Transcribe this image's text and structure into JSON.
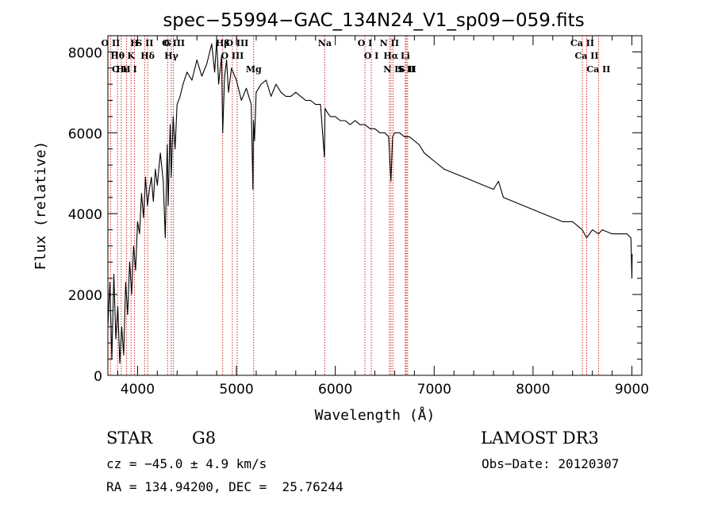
{
  "chart_data": {
    "type": "line",
    "title": "spec−55994−GAC_134N24_V1_sp09−059.fits",
    "xlabel": "Wavelength (Å)",
    "ylabel": "Flux (relative)",
    "xlim": [
      3700,
      9100
    ],
    "ylim": [
      0,
      8400
    ],
    "x_ticks": [
      4000,
      5000,
      6000,
      7000,
      8000,
      9000
    ],
    "x_tick_labels": [
      "4000",
      "5000",
      "6000",
      "7000",
      "8000",
      "9000"
    ],
    "y_ticks": [
      0,
      2000,
      4000,
      6000,
      8000
    ],
    "y_tick_labels": [
      "0",
      "2000",
      "4000",
      "6000",
      "8000"
    ],
    "series": [
      {
        "name": "spectrum",
        "x": [
          3700,
          3720,
          3740,
          3760,
          3780,
          3800,
          3820,
          3840,
          3860,
          3880,
          3900,
          3920,
          3940,
          3960,
          3980,
          4000,
          4020,
          4040,
          4060,
          4080,
          4100,
          4120,
          4140,
          4160,
          4180,
          4200,
          4230,
          4260,
          4280,
          4300,
          4310,
          4330,
          4340,
          4360,
          4380,
          4400,
          4430,
          4460,
          4500,
          4550,
          4600,
          4650,
          4700,
          4750,
          4780,
          4800,
          4820,
          4850,
          4861,
          4880,
          4900,
          4920,
          4950,
          5000,
          5050,
          5100,
          5150,
          5167,
          5172,
          5183,
          5200,
          5250,
          5300,
          5350,
          5400,
          5450,
          5500,
          5550,
          5600,
          5650,
          5700,
          5750,
          5800,
          5850,
          5890,
          5896,
          5920,
          5950,
          6000,
          6050,
          6100,
          6150,
          6200,
          6250,
          6300,
          6350,
          6400,
          6450,
          6500,
          6540,
          6563,
          6580,
          6600,
          6650,
          6700,
          6750,
          6800,
          6850,
          6900,
          6950,
          7000,
          7100,
          7200,
          7300,
          7400,
          7500,
          7600,
          7650,
          7700,
          7800,
          7900,
          8000,
          8100,
          8200,
          8300,
          8400,
          8498,
          8542,
          8600,
          8662,
          8700,
          8800,
          8900,
          8950,
          8990,
          9000,
          9002
        ],
        "y": [
          1200,
          2300,
          400,
          2500,
          900,
          1700,
          300,
          1200,
          500,
          2300,
          1500,
          2800,
          2000,
          3200,
          2600,
          3800,
          3500,
          4500,
          3900,
          4900,
          4200,
          4600,
          4900,
          4300,
          5100,
          4700,
          5500,
          4800,
          3400,
          5700,
          4200,
          6200,
          4900,
          6400,
          5600,
          6700,
          6900,
          7200,
          7500,
          7300,
          7800,
          7400,
          7700,
          8200,
          7500,
          8300,
          7200,
          7900,
          6000,
          7400,
          7800,
          7000,
          7600,
          7300,
          6800,
          7100,
          6700,
          4600,
          6300,
          5800,
          7000,
          7200,
          7300,
          6900,
          7200,
          7000,
          6900,
          6900,
          7000,
          6900,
          6800,
          6800,
          6700,
          6700,
          5400,
          6600,
          6500,
          6400,
          6400,
          6300,
          6300,
          6200,
          6300,
          6200,
          6200,
          6100,
          6100,
          6000,
          6000,
          5900,
          4800,
          5900,
          6000,
          6000,
          5900,
          5900,
          5800,
          5700,
          5500,
          5400,
          5300,
          5100,
          5000,
          4900,
          4800,
          4700,
          4600,
          4800,
          4400,
          4300,
          4200,
          4100,
          4000,
          3900,
          3800,
          3800,
          3600,
          3400,
          3600,
          3500,
          3600,
          3500,
          3500,
          3500,
          3400,
          2400,
          3000
        ]
      }
    ],
    "line_markers": [
      {
        "name": "O II",
        "wavelength": 3727
      },
      {
        "name": "Hθ",
        "wavelength": 3798
      },
      {
        "name": "O II",
        "wavelength": 3835
      },
      {
        "name": "He I",
        "wavelength": 3889
      },
      {
        "name": "K",
        "wavelength": 3934
      },
      {
        "name": "H",
        "wavelength": 3969
      },
      {
        "name": "S II",
        "wavelength": 4072
      },
      {
        "name": "Hδ",
        "wavelength": 4102
      },
      {
        "name": "G",
        "wavelength": 4304
      },
      {
        "name": "Hγ",
        "wavelength": 4341
      },
      {
        "name": "O III",
        "wavelength": 4363
      },
      {
        "name": "Hβ",
        "wavelength": 4861
      },
      {
        "name": "O III",
        "wavelength": 4959
      },
      {
        "name": "O III",
        "wavelength": 5007
      },
      {
        "name": "Mg",
        "wavelength": 5175
      },
      {
        "name": "Na",
        "wavelength": 5894
      },
      {
        "name": "O I",
        "wavelength": 6300
      },
      {
        "name": "O I",
        "wavelength": 6364
      },
      {
        "name": "N II",
        "wavelength": 6548
      },
      {
        "name": "Hα",
        "wavelength": 6563
      },
      {
        "name": "N II",
        "wavelength": 6583
      },
      {
        "name": "Li",
        "wavelength": 6708
      },
      {
        "name": "S II",
        "wavelength": 6717
      },
      {
        "name": "S II",
        "wavelength": 6731
      },
      {
        "name": "Ca II",
        "wavelength": 8498
      },
      {
        "name": "Ca II",
        "wavelength": 8542
      },
      {
        "name": "Ca II",
        "wavelength": 8662
      }
    ],
    "colors": {
      "spectrum": "#000000",
      "markers": "#cc0000",
      "axes": "#000000"
    }
  },
  "info": {
    "object_class": "STAR",
    "subclass": "G8",
    "survey": "LAMOST DR3",
    "redshift": "cz = −45.0 ± 4.9 km/s",
    "obs_date": "Obs−Date: 20120307",
    "coords": "RA = 134.94200, DEC =  25.76244"
  }
}
